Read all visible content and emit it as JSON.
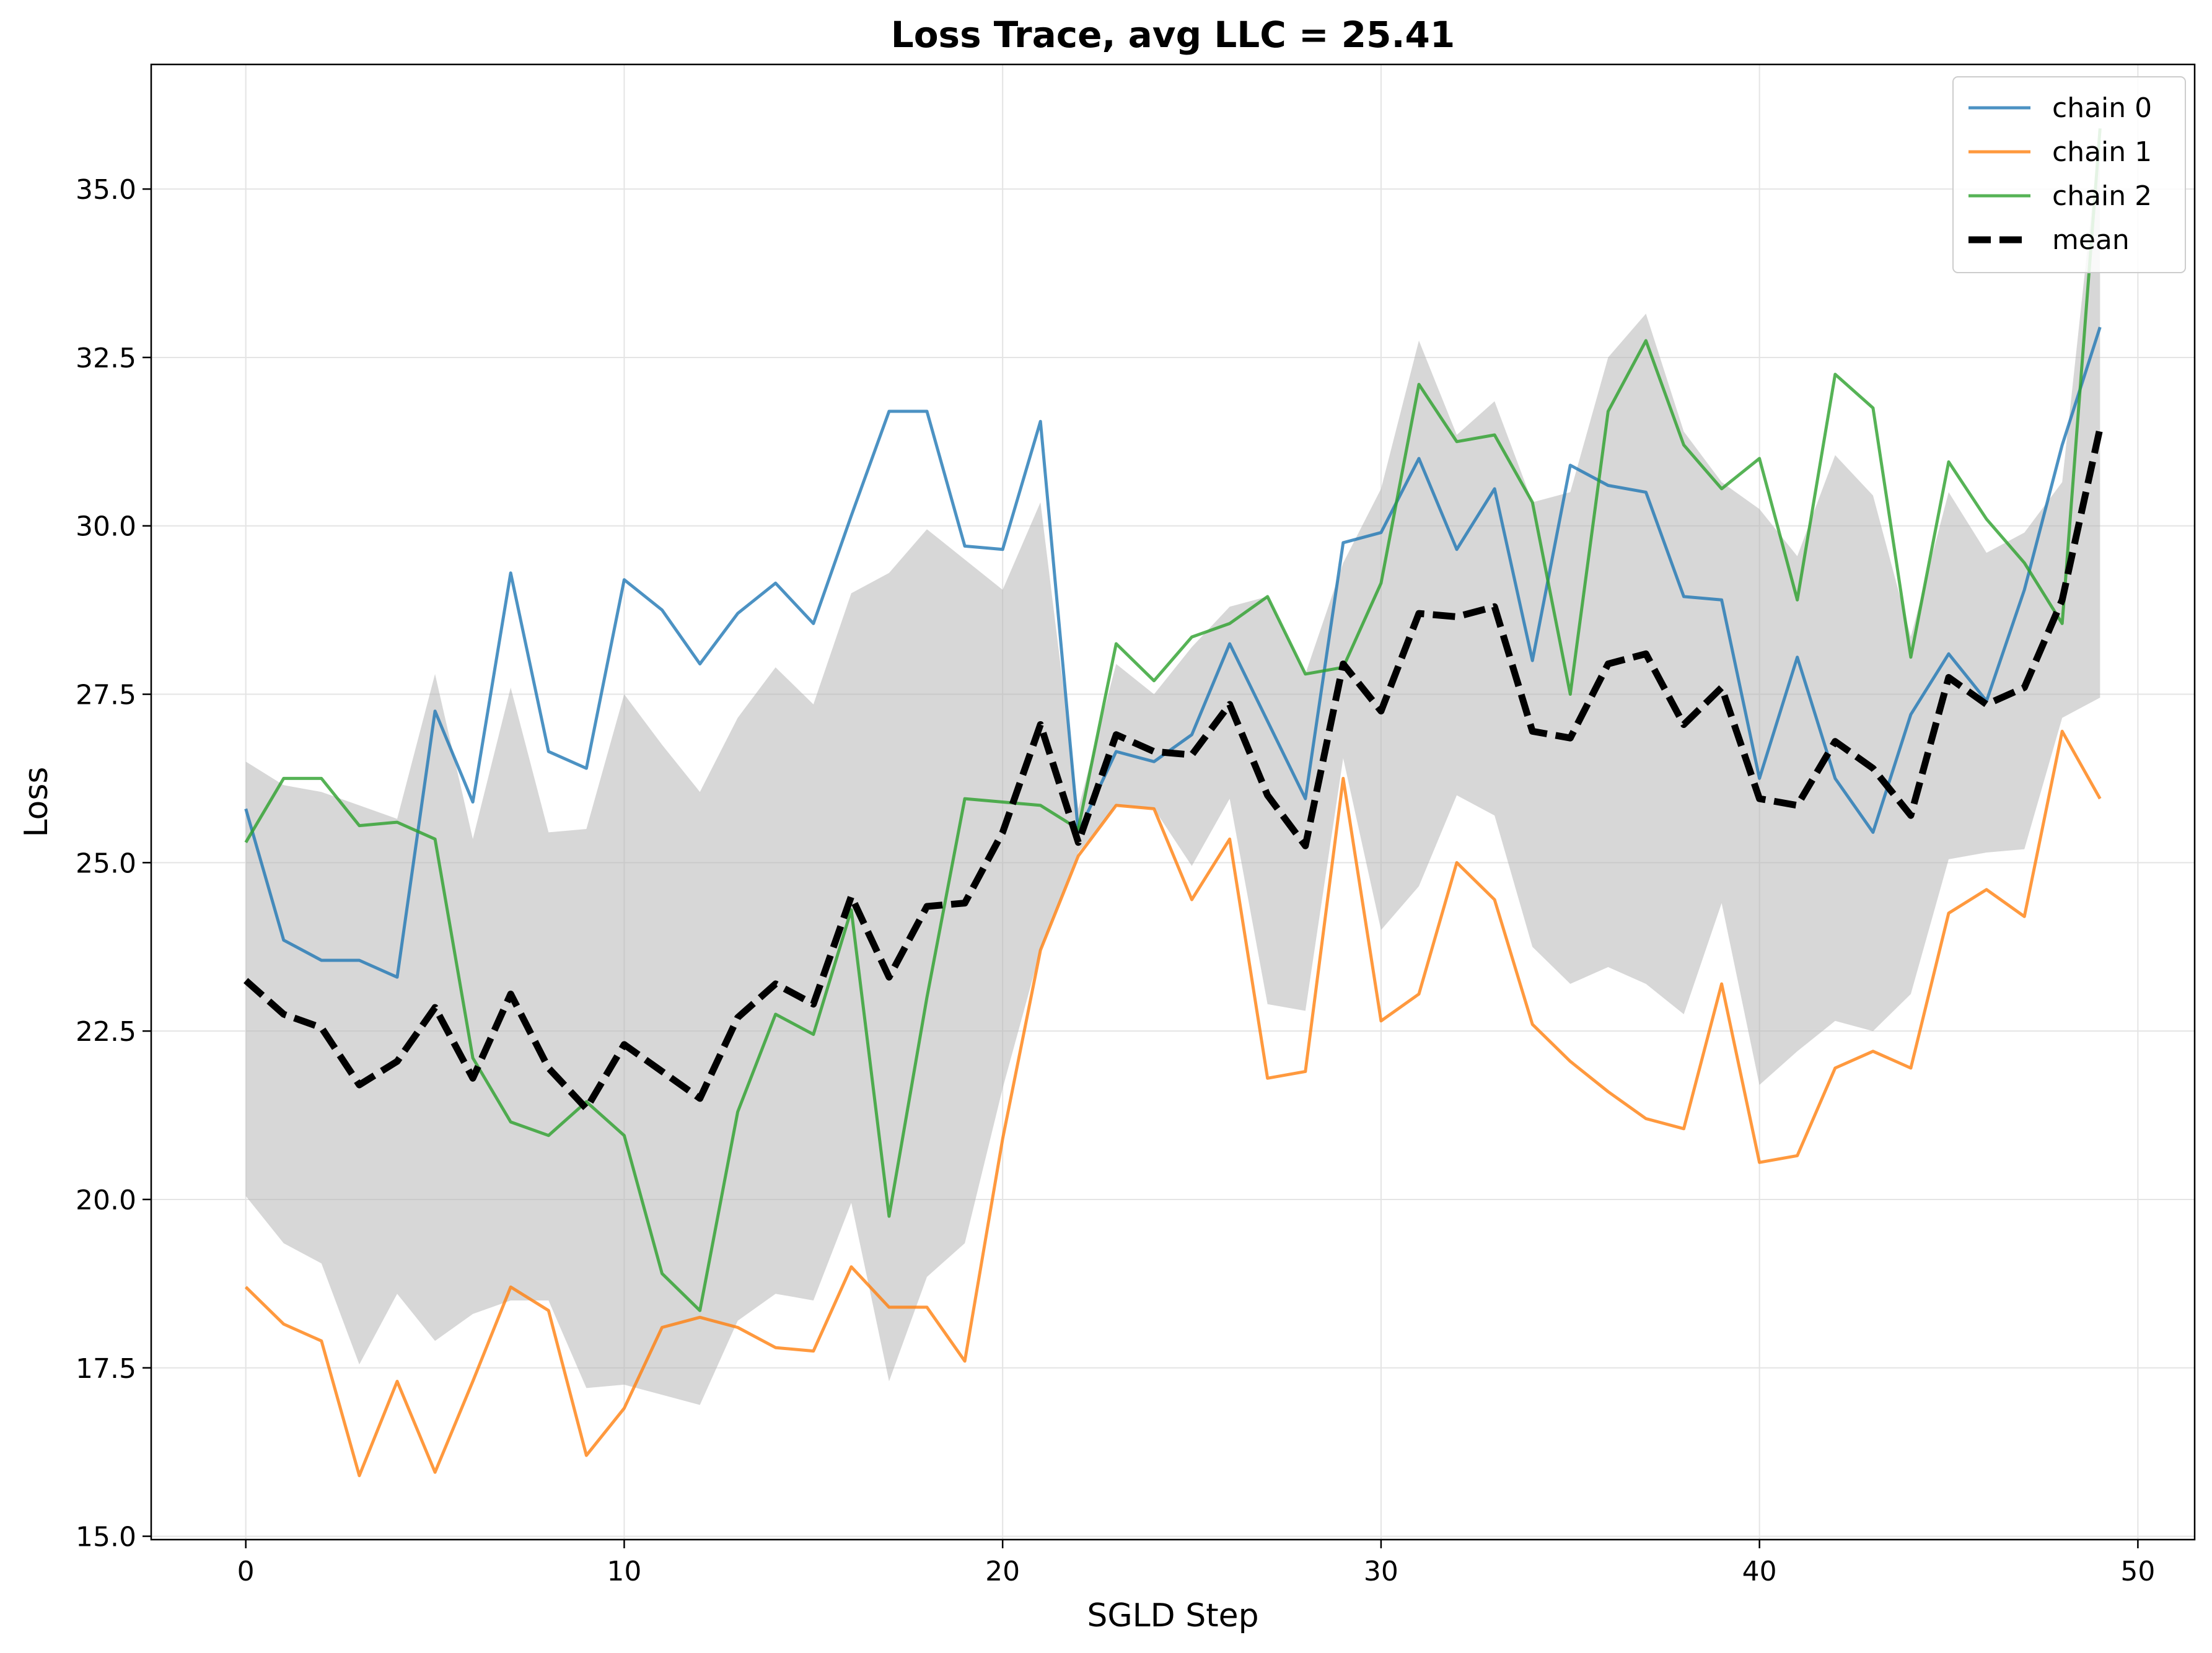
{
  "chart_data": {
    "type": "line",
    "title": "Loss Trace, avg LLC = 25.41",
    "xlabel": "SGLD Step",
    "ylabel": "Loss",
    "xlim": [
      -2.5,
      51.5
    ],
    "ylim": [
      14.95,
      36.85
    ],
    "xticks": [
      0,
      10,
      20,
      30,
      40,
      50
    ],
    "xtick_labels": [
      "0",
      "10",
      "20",
      "30",
      "40",
      "50"
    ],
    "yticks": [
      15.0,
      17.5,
      20.0,
      22.5,
      25.0,
      27.5,
      30.0,
      32.5,
      35.0
    ],
    "ytick_labels": [
      "15.0",
      "17.5",
      "20.0",
      "22.5",
      "25.0",
      "27.5",
      "30.0",
      "32.5",
      "35.0"
    ],
    "grid": true,
    "legend_position": "top-right",
    "x": [
      0,
      1,
      2,
      3,
      4,
      5,
      6,
      7,
      8,
      9,
      10,
      11,
      12,
      13,
      14,
      15,
      16,
      17,
      18,
      19,
      20,
      21,
      22,
      23,
      24,
      25,
      26,
      27,
      28,
      29,
      30,
      31,
      32,
      33,
      34,
      35,
      36,
      37,
      38,
      39,
      40,
      41,
      42,
      43,
      44,
      45,
      46,
      47,
      48,
      49
    ],
    "series": [
      {
        "name": "chain 0",
        "color": "#1f77b4",
        "style": "solid",
        "values": [
          25.8,
          23.85,
          23.55,
          23.55,
          23.3,
          27.25,
          25.9,
          29.3,
          26.65,
          26.4,
          29.2,
          28.75,
          27.95,
          28.7,
          29.15,
          28.55,
          30.15,
          31.7,
          31.7,
          29.7,
          29.65,
          31.55,
          25.45,
          26.65,
          26.5,
          26.9,
          28.25,
          27.1,
          25.95,
          29.75,
          29.9,
          31.0,
          29.65,
          30.55,
          28.0,
          30.9,
          30.6,
          30.5,
          28.95,
          28.9,
          26.25,
          28.05,
          26.25,
          25.45,
          27.2,
          28.1,
          27.4,
          29.05,
          31.2,
          32.95
        ]
      },
      {
        "name": "chain 1",
        "color": "#ff7f0e",
        "style": "solid",
        "values": [
          18.7,
          18.15,
          17.9,
          15.9,
          17.3,
          15.95,
          17.3,
          18.7,
          18.35,
          16.2,
          16.9,
          18.1,
          18.25,
          18.1,
          17.8,
          17.75,
          19.0,
          18.4,
          18.4,
          17.6,
          20.9,
          23.7,
          25.1,
          25.85,
          25.8,
          24.45,
          25.35,
          21.8,
          21.9,
          26.25,
          22.65,
          23.05,
          25.0,
          24.45,
          22.6,
          22.05,
          21.6,
          21.2,
          21.05,
          23.2,
          20.55,
          20.65,
          21.95,
          22.2,
          21.95,
          24.25,
          24.6,
          24.2,
          26.95,
          25.95
        ]
      },
      {
        "name": "chain 2",
        "color": "#2ca02c",
        "style": "solid",
        "values": [
          25.3,
          26.25,
          26.25,
          25.55,
          25.6,
          25.35,
          22.1,
          21.15,
          20.95,
          21.45,
          20.95,
          18.9,
          18.35,
          21.3,
          22.75,
          22.45,
          24.3,
          19.75,
          23.0,
          25.95,
          25.9,
          25.85,
          25.5,
          28.25,
          27.7,
          28.35,
          28.55,
          28.95,
          27.8,
          27.9,
          29.15,
          32.1,
          31.25,
          31.35,
          30.35,
          27.5,
          31.7,
          32.75,
          31.2,
          30.55,
          31.0,
          28.9,
          32.25,
          31.75,
          28.05,
          30.95,
          30.1,
          29.45,
          28.55,
          35.9
        ]
      },
      {
        "name": "mean",
        "color": "#000000",
        "style": "dashed",
        "values": [
          23.25,
          22.75,
          22.55,
          21.7,
          22.05,
          22.85,
          21.8,
          23.05,
          21.95,
          21.35,
          22.3,
          21.9,
          21.5,
          22.7,
          23.2,
          22.9,
          24.5,
          23.3,
          24.35,
          24.4,
          25.45,
          27.05,
          25.3,
          26.9,
          26.65,
          26.6,
          27.35,
          26.0,
          25.25,
          27.95,
          27.25,
          28.7,
          28.65,
          28.8,
          26.95,
          26.85,
          27.95,
          28.1,
          27.05,
          27.6,
          25.95,
          25.85,
          26.8,
          26.4,
          25.7,
          27.75,
          27.35,
          27.6,
          28.9,
          31.45
        ]
      }
    ],
    "band": {
      "color": "#b0b0b0",
      "lower": [
        20.05,
        19.35,
        19.05,
        17.55,
        18.6,
        17.9,
        18.3,
        18.5,
        18.5,
        17.2,
        17.25,
        17.1,
        16.95,
        18.2,
        18.6,
        18.5,
        19.95,
        17.3,
        18.85,
        19.35,
        21.65,
        23.7,
        25.15,
        25.85,
        25.8,
        24.95,
        25.95,
        22.9,
        22.8,
        26.55,
        24.0,
        24.65,
        26.0,
        25.7,
        23.75,
        23.2,
        23.45,
        23.2,
        22.75,
        24.4,
        21.7,
        22.2,
        22.65,
        22.5,
        23.05,
        25.05,
        25.15,
        25.2,
        27.15,
        27.45
      ],
      "upper": [
        26.5,
        26.15,
        26.05,
        25.85,
        25.65,
        27.8,
        25.35,
        27.6,
        25.45,
        25.5,
        27.5,
        26.75,
        26.05,
        27.15,
        27.9,
        27.35,
        29.0,
        29.3,
        29.95,
        29.5,
        29.05,
        30.35,
        25.8,
        27.95,
        27.5,
        28.2,
        28.8,
        28.95,
        27.8,
        29.45,
        30.55,
        32.75,
        31.35,
        31.85,
        30.35,
        30.5,
        32.5,
        33.15,
        31.4,
        30.65,
        30.25,
        29.55,
        31.05,
        30.45,
        28.35,
        30.5,
        29.6,
        29.9,
        30.65,
        35.85
      ]
    }
  }
}
